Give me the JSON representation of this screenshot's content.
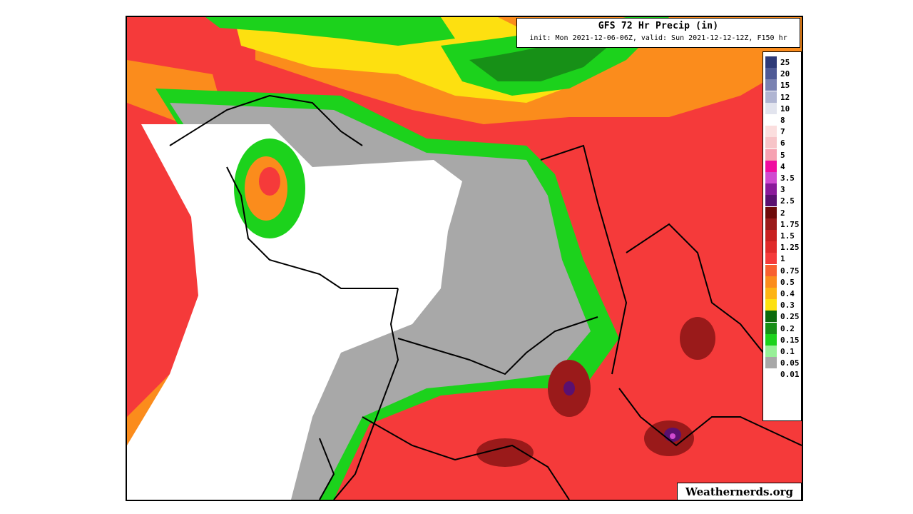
{
  "title": "GFS 72 Hr Precip (in)",
  "subtitle": "init: Mon 2021-12-06-06Z, valid: Sun 2021-12-12-12Z, F150 hr",
  "watermark": "Weathernerds.org",
  "legend": [
    {
      "label": "25",
      "color": "#2e3a78"
    },
    {
      "label": "20",
      "color": "#4f5a96"
    },
    {
      "label": "15",
      "color": "#7a82b2"
    },
    {
      "label": "12",
      "color": "#b0b5d2"
    },
    {
      "label": "10",
      "color": "#e2e4ee"
    },
    {
      "label": "8",
      "color": "#ffffff"
    },
    {
      "label": "7",
      "color": "#fbdede"
    },
    {
      "label": "6",
      "color": "#f7c4c8"
    },
    {
      "label": "5",
      "color": "#f6a2b2"
    },
    {
      "label": "4",
      "color": "#f00ca0"
    },
    {
      "label": "3.5",
      "color": "#d04ad0"
    },
    {
      "label": "3",
      "color": "#8a1a9a"
    },
    {
      "label": "2.5",
      "color": "#5a1070"
    },
    {
      "label": "2",
      "color": "#6e0a0a"
    },
    {
      "label": "1.75",
      "color": "#9a1a1a"
    },
    {
      "label": "1.5",
      "color": "#c82020"
    },
    {
      "label": "1.25",
      "color": "#e02a2a"
    },
    {
      "label": "1",
      "color": "#f53a3a"
    },
    {
      "label": "0.75",
      "color": "#f86030"
    },
    {
      "label": "0.5",
      "color": "#fb8c1c"
    },
    {
      "label": "0.4",
      "color": "#fdb414"
    },
    {
      "label": "0.3",
      "color": "#fde010"
    },
    {
      "label": "0.25",
      "color": "#0c6a0c"
    },
    {
      "label": "0.2",
      "color": "#179017"
    },
    {
      "label": "0.15",
      "color": "#1cd21c"
    },
    {
      "label": "0.1",
      "color": "#98f098"
    },
    {
      "label": "0.05",
      "color": "#a8a8a8"
    },
    {
      "label": "0.01",
      "color": "#ffffff"
    }
  ]
}
